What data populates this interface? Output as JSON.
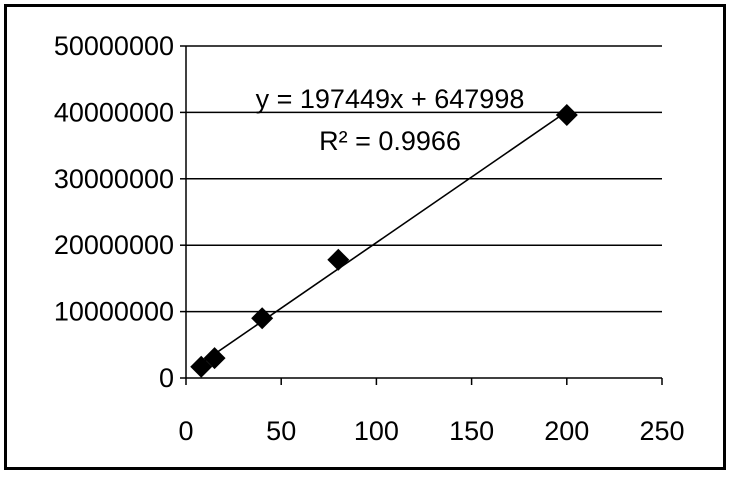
{
  "chart_data": {
    "type": "scatter",
    "x": [
      8,
      15,
      40,
      80,
      200
    ],
    "y": [
      1700000,
      3000000,
      9000000,
      17800000,
      39600000
    ],
    "xlim": [
      0,
      250
    ],
    "ylim": [
      0,
      50000000
    ],
    "xticks": [
      0,
      50,
      100,
      150,
      200,
      250
    ],
    "yticks": [
      0,
      10000000,
      20000000,
      30000000,
      40000000,
      50000000
    ],
    "xtick_labels": [
      "0",
      "50",
      "100",
      "150",
      "200",
      "250"
    ],
    "ytick_labels": [
      "0",
      "10000000",
      "20000000",
      "30000000",
      "40000000",
      "50000000"
    ],
    "grid": "horizontal",
    "marker": "diamond",
    "trendline": {
      "type": "linear",
      "slope": 197449,
      "intercept": 647998,
      "equation": "y = 197449x + 647998",
      "r_squared": "R² = 0.9966"
    },
    "colors": {
      "marker": "#000000",
      "line": "#000000",
      "grid": "#000000"
    }
  }
}
